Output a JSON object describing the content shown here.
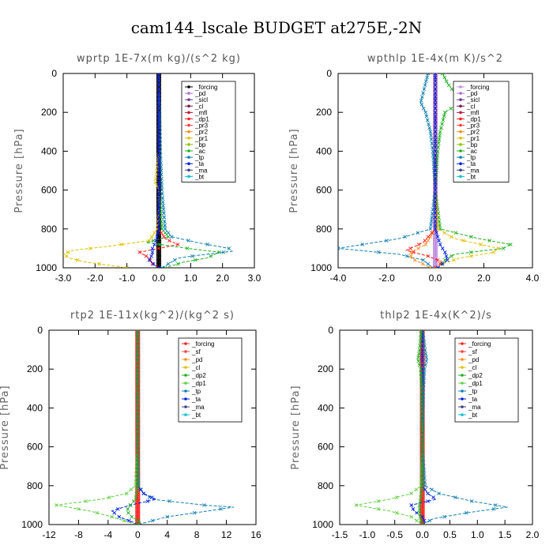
{
  "title": "cam144_lscale  BUDGET at275E,-2N",
  "chart_data": [
    {
      "type": "line",
      "title": "wprtp  1E-7x(m kg)/(s^2 kg)",
      "ylabel": "Pressure [hPa]",
      "xlim": [
        -3.0,
        3.0
      ],
      "ylim": [
        1000,
        0
      ],
      "xticks": [
        "-3.0",
        "-2.0",
        "-1.0",
        "0.0",
        "1.0",
        "2.0",
        "3.0"
      ],
      "xtick_values": [
        -3,
        -2,
        -1,
        0,
        1,
        2,
        3
      ],
      "yticks": [
        "0",
        "200",
        "400",
        "600",
        "800",
        "1000"
      ],
      "ytick_values": [
        0,
        200,
        400,
        600,
        800,
        1000
      ],
      "legend_labels": [
        "_forcing",
        "_pd",
        "_sicl",
        "_cl",
        "_mfl",
        "_dp1",
        "_pr3",
        "_pr2",
        "_pr1",
        "_bp",
        "_ac",
        "_tp",
        "_ta",
        "_ma",
        "_bt"
      ],
      "colors": {
        "_forcing": "#000000",
        "_pd": "#b070d0",
        "_sicl": "#6a3a9a",
        "_cl": "#7a1a4a",
        "_mfl": "#c01040",
        "_dp1": "#ff2020",
        "_pr3": "#ff4040",
        "_pr2": "#ff9020",
        "_pr1": "#e0c000",
        "_bp": "#90c000",
        "_ac": "#20b020",
        "_tp": "#1080b0",
        "_ta": "#0020e0",
        "_ma": "#404080",
        "_bt": "#00c0d0"
      },
      "series": [
        {
          "name": "_forcing",
          "p": [
            0,
            100,
            200,
            300,
            400,
            500,
            600,
            700,
            800,
            850,
            900,
            950,
            1000
          ],
          "x": [
            0,
            0,
            0,
            0,
            0,
            0,
            0,
            0,
            0,
            0,
            0,
            0,
            0
          ]
        },
        {
          "name": "_pr1",
          "p": [
            0,
            400,
            560,
            600,
            700,
            800,
            860,
            890,
            910,
            930,
            950,
            970,
            1000
          ],
          "x": [
            0,
            0,
            -0.1,
            0,
            0,
            -0.05,
            -0.3,
            -1.6,
            -2.7,
            -3.0,
            -2.8,
            -2.3,
            -1.0
          ]
        },
        {
          "name": "_ac",
          "p": [
            0,
            400,
            600,
            800,
            840,
            870,
            900,
            920,
            950,
            970,
            1000
          ],
          "x": [
            0,
            0,
            0,
            0.1,
            0.3,
            -0.4,
            0.9,
            1.9,
            1.5,
            0.8,
            0.2
          ]
        },
        {
          "name": "_tp",
          "p": [
            0,
            400,
            600,
            800,
            840,
            870,
            900,
            915,
            930,
            950,
            980,
            1000
          ],
          "x": [
            0,
            0.05,
            0.1,
            0.2,
            0.4,
            1.2,
            2.2,
            2.3,
            1.5,
            0.6,
            0.3,
            0.1
          ]
        },
        {
          "name": "_dp1",
          "p": [
            0,
            600,
            800,
            850,
            880,
            920,
            950,
            980,
            1000
          ],
          "x": [
            0,
            0,
            0,
            0.2,
            0.6,
            -0.6,
            -0.3,
            -0.2,
            0
          ]
        },
        {
          "name": "_ta",
          "p": [
            0,
            600,
            800,
            870,
            900,
            930,
            960,
            990,
            1000
          ],
          "x": [
            0,
            0,
            0,
            -0.1,
            -0.2,
            -0.2,
            -0.3,
            -0.1,
            0
          ]
        }
      ]
    },
    {
      "type": "line",
      "title": "wpthlp  1E-4x(m K)/s^2",
      "ylabel": "Pressure [hPa]",
      "xlim": [
        -4.0,
        4.0
      ],
      "ylim": [
        1000,
        0
      ],
      "xticks": [
        "-4.0",
        "-2.0",
        "0.0",
        "2.0",
        "4.0"
      ],
      "xtick_values": [
        -4,
        -2,
        0,
        2,
        4
      ],
      "yticks": [
        "0",
        "200",
        "400",
        "600",
        "800",
        "1000"
      ],
      "ytick_values": [
        0,
        200,
        400,
        600,
        800,
        1000
      ],
      "legend_labels": [
        "_forcing",
        "_pd",
        "_sicl",
        "_cl",
        "_mfl",
        "_dp1",
        "_pr3",
        "_pr2",
        "_pr1",
        "_bp",
        "_ac",
        "_tp",
        "_ta",
        "_ma",
        "_bt"
      ],
      "colors": {
        "_forcing": "#c090e0",
        "_pd": "#b070d0",
        "_sicl": "#6a3a9a",
        "_cl": "#7a1a4a",
        "_mfl": "#c01040",
        "_dp1": "#ff2020",
        "_pr3": "#ff4040",
        "_pr2": "#ff9020",
        "_pr1": "#e0c000",
        "_bp": "#90c000",
        "_ac": "#20b020",
        "_tp": "#1080b0",
        "_ta": "#0020e0",
        "_ma": "#404080",
        "_bt": "#00c0d0"
      },
      "series": [
        {
          "name": "_forcing",
          "p": [
            0,
            200,
            400,
            600,
            800,
            1000
          ],
          "x": [
            0,
            0,
            0,
            0,
            0,
            0
          ]
        },
        {
          "name": "_ac",
          "p": [
            0,
            50,
            100,
            150,
            200,
            300,
            400,
            600,
            800,
            850,
            880,
            900,
            930,
            960,
            1000
          ],
          "x": [
            0.3,
            0.5,
            0.8,
            1.0,
            0.4,
            0.2,
            0.1,
            0,
            0.2,
            1.8,
            3.1,
            2.8,
            0.8,
            0.4,
            0.1
          ]
        },
        {
          "name": "_tp",
          "p": [
            0,
            50,
            100,
            150,
            200,
            300,
            400,
            600,
            800,
            850,
            880,
            900,
            930,
            960,
            1000
          ],
          "x": [
            -0.3,
            -0.4,
            -0.5,
            -0.6,
            -0.4,
            -0.2,
            -0.1,
            0,
            -0.2,
            -1.5,
            -3.0,
            -4.0,
            -1.5,
            -0.5,
            -0.1
          ]
        },
        {
          "name": "_pr1",
          "p": [
            0,
            600,
            800,
            850,
            900,
            920,
            950,
            980,
            1000
          ],
          "x": [
            0,
            0,
            0.1,
            0.8,
            2.6,
            2.4,
            1.0,
            0.3,
            0
          ]
        },
        {
          "name": "_pr2",
          "p": [
            0,
            600,
            800,
            880,
            920,
            950,
            1000
          ],
          "x": [
            0,
            0,
            0,
            -0.4,
            -1.0,
            -1.0,
            -0.2
          ]
        },
        {
          "name": "_dp1",
          "p": [
            0,
            600,
            800,
            870,
            910,
            940,
            970,
            1000
          ],
          "x": [
            0,
            0,
            0,
            -0.5,
            -1.2,
            -0.3,
            0.3,
            0
          ]
        },
        {
          "name": "_ta",
          "p": [
            0,
            600,
            800,
            880,
            920,
            960,
            1000
          ],
          "x": [
            0,
            0,
            0,
            0.2,
            0.4,
            0.5,
            0.1
          ]
        }
      ]
    },
    {
      "type": "line",
      "title": "rtp2  1E-11x(kg^2)/(kg^2 s)",
      "ylabel": "Pressure [hPa]",
      "xlim": [
        -12,
        16
      ],
      "ylim": [
        1000,
        0
      ],
      "xticks": [
        "-12",
        "-8",
        "-4",
        "0",
        "4",
        "8",
        "12",
        "16"
      ],
      "xtick_values": [
        -12,
        -8,
        -4,
        0,
        4,
        8,
        12,
        16
      ],
      "yticks": [
        "0",
        "200",
        "400",
        "600",
        "800",
        "1000"
      ],
      "ytick_values": [
        0,
        200,
        400,
        600,
        800,
        1000
      ],
      "legend_labels": [
        "_forcing",
        "_sf",
        "_pd",
        "_cl",
        "_dp2",
        "_dp1",
        "_tp",
        "_ta",
        "_ma",
        "_bt"
      ],
      "colors": {
        "_forcing": "#ff2020",
        "_sf": "#ff4040",
        "_pd": "#ff9020",
        "_cl": "#e0c000",
        "_dp2": "#20b020",
        "_dp1": "#60d040",
        "_tp": "#1080b0",
        "_ta": "#0020e0",
        "_ma": "#404080",
        "_bt": "#00c0d0"
      },
      "series": [
        {
          "name": "_forcing",
          "p": [
            0,
            100,
            200,
            300,
            400,
            500,
            600,
            700,
            800,
            850,
            900,
            950,
            1000
          ],
          "x": [
            0,
            0,
            0,
            0,
            0,
            0,
            0,
            0,
            0,
            0,
            0,
            0,
            0
          ]
        },
        {
          "name": "_dp1",
          "p": [
            0,
            600,
            800,
            840,
            870,
            900,
            930,
            960,
            990,
            1000
          ],
          "x": [
            0,
            0,
            -0.3,
            -1.5,
            -5.0,
            -11.0,
            -6.5,
            -3.5,
            -1.0,
            0
          ]
        },
        {
          "name": "_tp",
          "p": [
            0,
            600,
            800,
            840,
            870,
            900,
            910,
            930,
            960,
            990,
            1000
          ],
          "x": [
            0,
            0,
            0.1,
            0.8,
            2.0,
            9.0,
            13.0,
            9.5,
            4.0,
            1.0,
            0
          ]
        },
        {
          "name": "_ta",
          "p": [
            0,
            600,
            800,
            840,
            870,
            900,
            930,
            960,
            990,
            1000
          ],
          "x": [
            0,
            0,
            0,
            0.8,
            2.5,
            -1.0,
            -3.5,
            -2.5,
            -0.5,
            0
          ]
        },
        {
          "name": "_dp2",
          "p": [
            0,
            600,
            800,
            870,
            900,
            930,
            960,
            990,
            1000
          ],
          "x": [
            0,
            0,
            0,
            -0.3,
            -1.0,
            -1.5,
            -0.8,
            0.5,
            0
          ]
        }
      ]
    },
    {
      "type": "line",
      "title": "thlp2  1E-4x(K^2)/s",
      "ylabel": "Pressure [hPa]",
      "xlim": [
        -1.5,
        2.0
      ],
      "ylim": [
        1000,
        0
      ],
      "xticks": [
        "-1.5",
        "-1.0",
        "-0.5",
        "0.0",
        "0.5",
        "1.0",
        "1.5",
        "2.0"
      ],
      "xtick_values": [
        -1.5,
        -1.0,
        -0.5,
        0,
        0.5,
        1.0,
        1.5,
        2.0
      ],
      "yticks": [
        "0",
        "200",
        "400",
        "600",
        "800",
        "1000"
      ],
      "ytick_values": [
        0,
        200,
        400,
        600,
        800,
        1000
      ],
      "legend_labels": [
        "_forcing",
        "_sf",
        "_pd",
        "_cl",
        "_dp2",
        "_dp1",
        "_tp",
        "_ta",
        "_ma",
        "_bt"
      ],
      "colors": {
        "_forcing": "#ff2020",
        "_sf": "#ff4040",
        "_pd": "#ff9020",
        "_cl": "#e0c000",
        "_dp2": "#20b020",
        "_dp1": "#60d040",
        "_tp": "#1080b0",
        "_ta": "#0020e0",
        "_ma": "#404080",
        "_bt": "#00c0d0"
      },
      "series": [
        {
          "name": "_forcing",
          "p": [
            0,
            200,
            400,
            600,
            800,
            1000
          ],
          "x": [
            0,
            0,
            0,
            0,
            0,
            0
          ]
        },
        {
          "name": "_dp1",
          "p": [
            0,
            600,
            800,
            840,
            870,
            900,
            930,
            960,
            990,
            1000
          ],
          "x": [
            0,
            0,
            -0.02,
            -0.2,
            -0.6,
            -1.2,
            -0.6,
            -0.2,
            -0.05,
            0
          ]
        },
        {
          "name": "_tp",
          "p": [
            0,
            50,
            100,
            150,
            200,
            300,
            600,
            800,
            840,
            880,
            910,
            940,
            970,
            1000
          ],
          "x": [
            0,
            0.03,
            0.05,
            0.08,
            0.04,
            0.02,
            0,
            0.05,
            0.3,
            0.9,
            1.55,
            0.8,
            0.2,
            0
          ]
        },
        {
          "name": "_ta",
          "p": [
            0,
            600,
            800,
            840,
            870,
            900,
            930,
            960,
            990,
            1000
          ],
          "x": [
            0,
            0,
            0,
            0.1,
            0.25,
            -0.2,
            -0.15,
            0,
            0.05,
            0
          ]
        },
        {
          "name": "_dp2",
          "p": [
            0,
            100,
            150,
            200,
            300,
            600,
            800,
            900,
            950,
            1000
          ],
          "x": [
            -0.02,
            -0.05,
            -0.08,
            -0.03,
            -0.01,
            0,
            0,
            -0.05,
            -0.05,
            0
          ]
        }
      ]
    }
  ]
}
